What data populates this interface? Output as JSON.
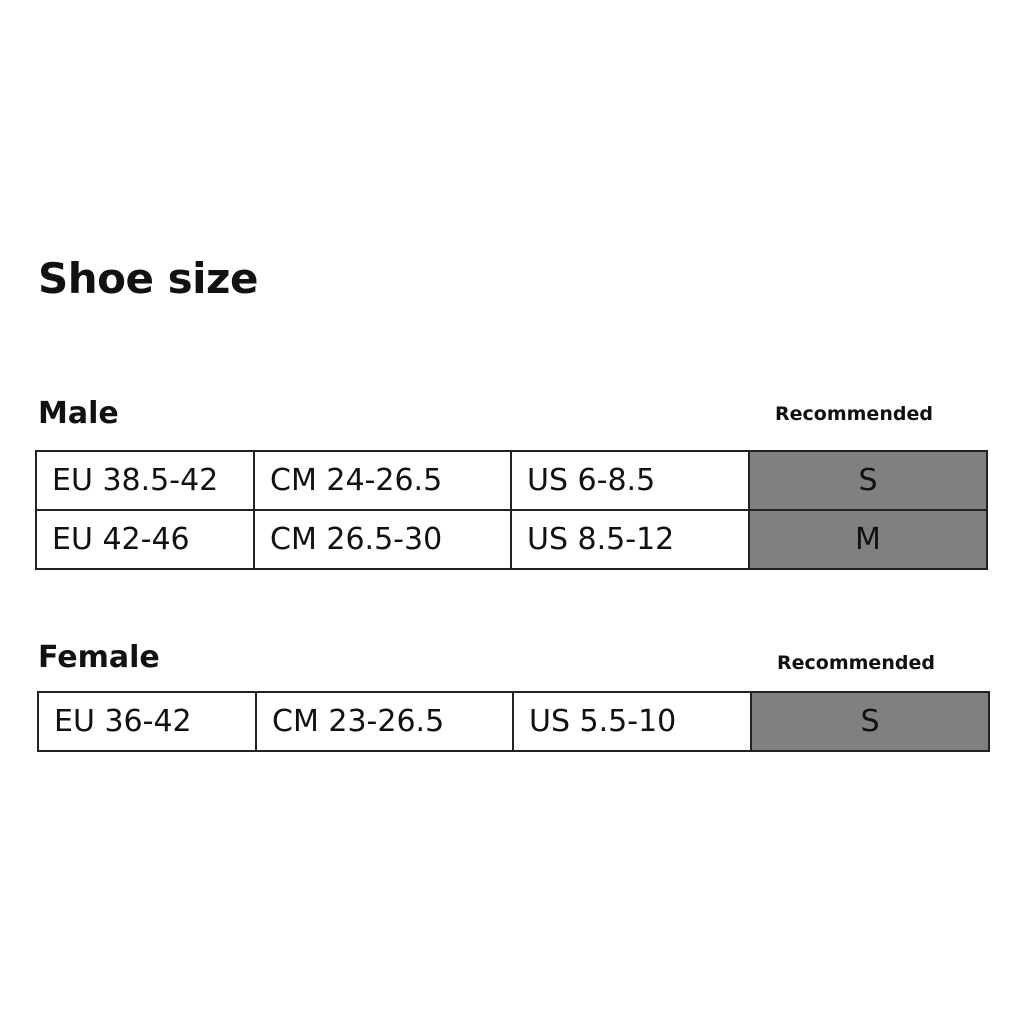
{
  "title": "Shoe size",
  "recommended_label": "Recommended",
  "colors": {
    "recommended_fill": "#808080"
  },
  "male": {
    "label": "Male",
    "rows": [
      {
        "eu": "EU 38.5-42",
        "cm": "CM 24-26.5",
        "us": "US 6-8.5",
        "size": "S"
      },
      {
        "eu": "EU 42-46",
        "cm": "CM 26.5-30",
        "us": "US 8.5-12",
        "size": "M"
      }
    ]
  },
  "female": {
    "label": "Female",
    "rows": [
      {
        "eu": "EU 36-42",
        "cm": "CM 23-26.5",
        "us": "US 5.5-10",
        "size": "S"
      }
    ]
  }
}
